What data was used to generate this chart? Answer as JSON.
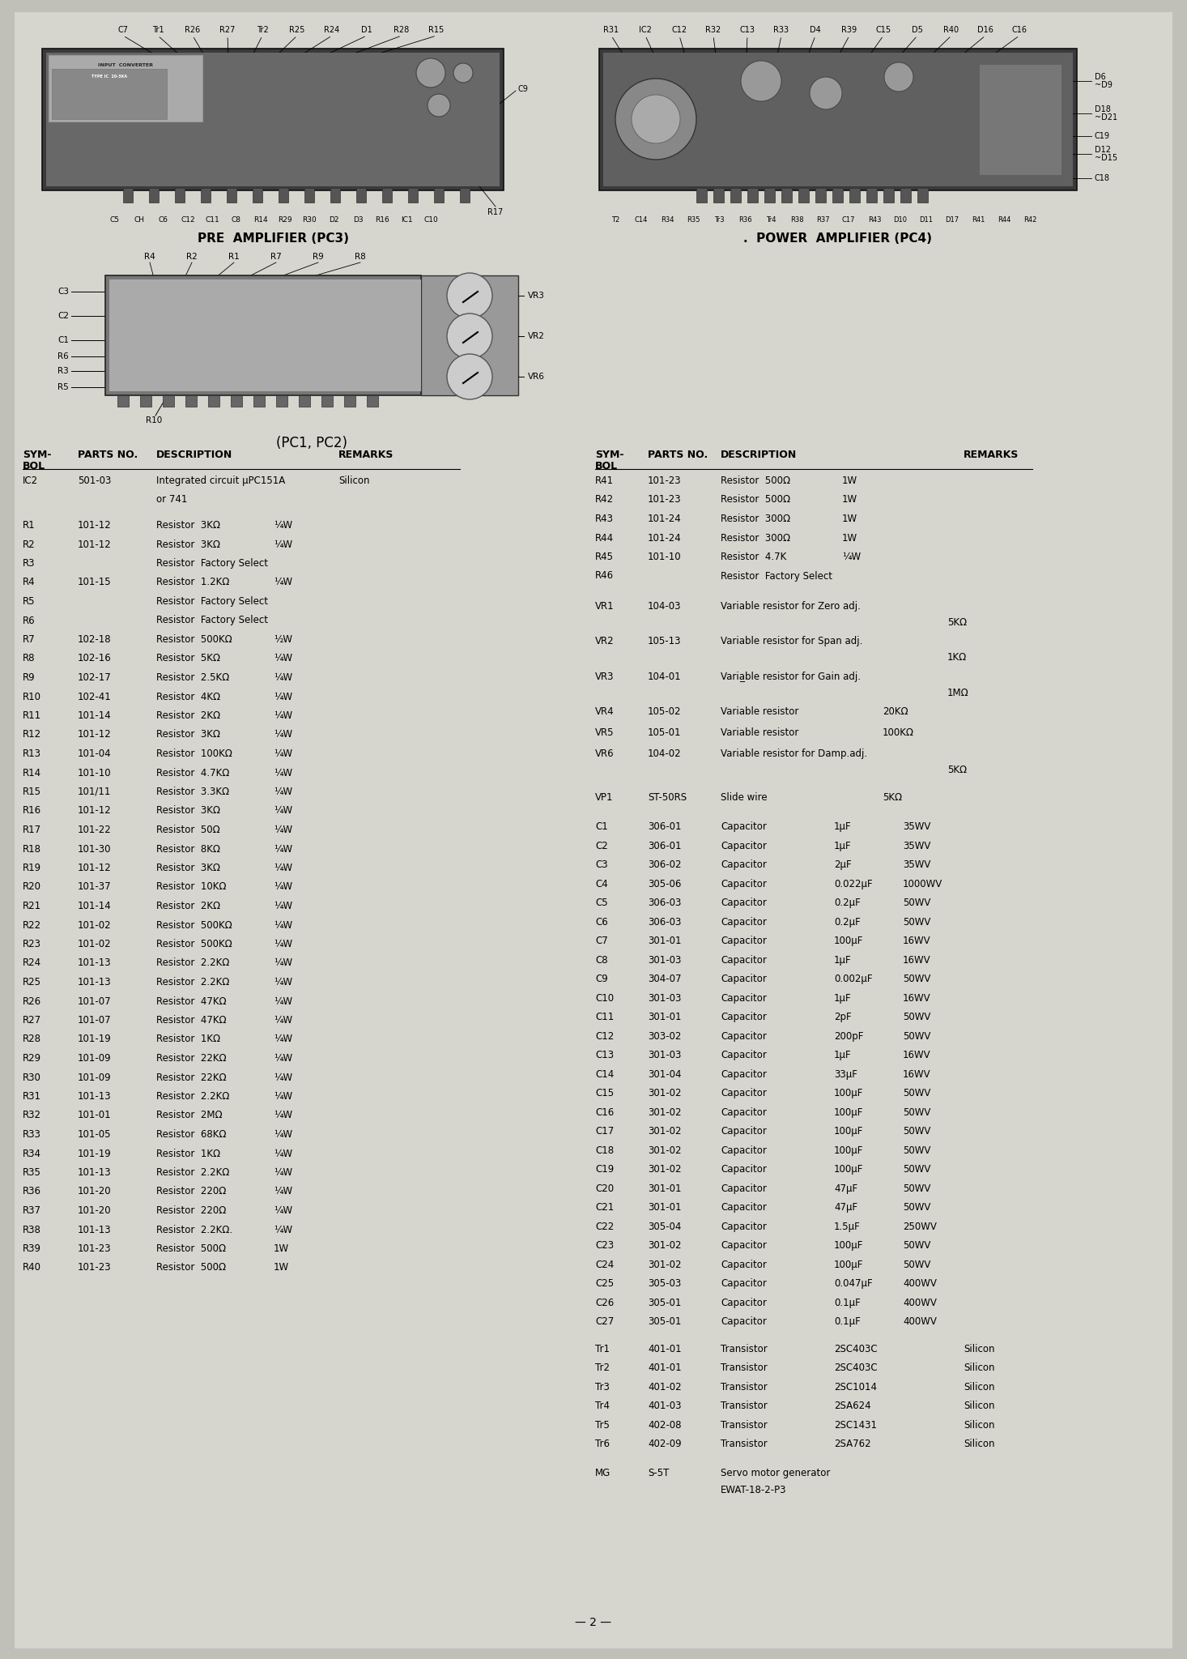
{
  "bg_color": "#c8c8c0",
  "page_bg": "#d4d4cc",
  "left_rows": [
    [
      "IC2",
      "501-03",
      "Integrated circuit μPC151A",
      "Silicon",
      "or 741"
    ],
    [
      "R1",
      "101-12",
      "Resistor  3KΩ",
      "¼W",
      ""
    ],
    [
      "R2",
      "101-12",
      "Resistor  3KΩ",
      "¼W",
      ""
    ],
    [
      "R3",
      "",
      "Resistor  Factory Select",
      "",
      ""
    ],
    [
      "R4",
      "101-15",
      "Resistor  1.2KΩ",
      "¼W",
      ""
    ],
    [
      "R5",
      "",
      "Resistor  Factory Select",
      "",
      ""
    ],
    [
      "R6",
      "",
      "Resistor  Factory Select",
      "",
      ""
    ],
    [
      "R7",
      "102-18",
      "Resistor  500KΩ",
      "½W",
      ""
    ],
    [
      "R8",
      "102-16",
      "Resistor  5KΩ",
      "¼W",
      ""
    ],
    [
      "R9",
      "102-17",
      "Resistor  2.5KΩ",
      "¼W",
      ""
    ],
    [
      "R10",
      "102-41",
      "Resistor  4KΩ",
      "¼W",
      ""
    ],
    [
      "R11",
      "101-14",
      "Resistor  2KΩ",
      "¼W",
      ""
    ],
    [
      "R12",
      "101-12",
      "Resistor  3KΩ",
      "¼W",
      ""
    ],
    [
      "R13",
      "101-04",
      "Resistor  100KΩ",
      "¼W",
      ""
    ],
    [
      "R14",
      "101-10",
      "Resistor  4.7KΩ",
      "¼W",
      ""
    ],
    [
      "R15",
      "101/11",
      "Resistor  3.3KΩ",
      "¼W",
      ""
    ],
    [
      "R16",
      "101-12",
      "Resistor  3KΩ",
      "¼W",
      ""
    ],
    [
      "R17",
      "101-22",
      "Resistor  50Ω",
      "¼W",
      ""
    ],
    [
      "R18",
      "101-30",
      "Resistor  8KΩ",
      "¼W",
      ""
    ],
    [
      "R19",
      "101-12",
      "Resistor  3KΩ",
      "¼W",
      ""
    ],
    [
      "R20",
      "101-37",
      "Resistor  10KΩ",
      "¼W",
      ""
    ],
    [
      "R21",
      "101-14",
      "Resistor  2KΩ",
      "¼W",
      ""
    ],
    [
      "R22",
      "101-02",
      "Resistor  500KΩ",
      "¼W",
      ""
    ],
    [
      "R23",
      "101-02",
      "Resistor  500KΩ",
      "¼W",
      ""
    ],
    [
      "R24",
      "101-13",
      "Resistor  2.2KΩ",
      "¼W",
      ""
    ],
    [
      "R25",
      "101-13",
      "Resistor  2.2KΩ",
      "¼W",
      ""
    ],
    [
      "R26",
      "101-07",
      "Resistor  47KΩ",
      "¼W",
      ""
    ],
    [
      "R27",
      "101-07",
      "Resistor  47KΩ",
      "¼W",
      ""
    ],
    [
      "R28",
      "101-19",
      "Resistor  1KΩ",
      "¼W",
      ""
    ],
    [
      "R29",
      "101-09",
      "Resistor  22KΩ",
      "¼W",
      ""
    ],
    [
      "R30",
      "101-09",
      "Resistor  22KΩ",
      "¼W",
      ""
    ],
    [
      "R31",
      "101-13",
      "Resistor  2.2KΩ",
      "¼W",
      ""
    ],
    [
      "R32",
      "101-01",
      "Resistor  2MΩ",
      "¼W",
      ""
    ],
    [
      "R33",
      "101-05",
      "Resistor  68KΩ",
      "¼W",
      ""
    ],
    [
      "R34",
      "101-19",
      "Resistor  1KΩ",
      "¼W",
      ""
    ],
    [
      "R35",
      "101-13",
      "Resistor  2.2KΩ",
      "¼W",
      ""
    ],
    [
      "R36",
      "101-20",
      "Resistor  220Ω",
      "¼W",
      ""
    ],
    [
      "R37",
      "101-20",
      "Resistor  220Ω",
      "¼W",
      ""
    ],
    [
      "R38",
      "101-13",
      "Resistor  2.2KΩ.",
      "¼W",
      ""
    ],
    [
      "R39",
      "101-23",
      "Resistor  500Ω",
      "1W",
      ""
    ],
    [
      "R40",
      "101-23",
      "Resistor  500Ω",
      "1W",
      ""
    ]
  ],
  "right_rows_top": [
    [
      "R41",
      "101-23",
      "Resistor  500Ω",
      "1W",
      ""
    ],
    [
      "R42",
      "101-23",
      "Resistor  500Ω",
      "1W",
      ""
    ],
    [
      "R43",
      "101-24",
      "Resistor  300Ω",
      "1W",
      ""
    ],
    [
      "R44",
      "101-24",
      "Resistor  300Ω",
      "1W",
      ""
    ],
    [
      "R45",
      "101-10",
      "Resistor  4.7K",
      "¼W",
      ""
    ],
    [
      "R46",
      "",
      "Resistor  Factory Select",
      "",
      ""
    ]
  ],
  "right_rows_vr": [
    [
      "VR1",
      "104-03",
      "Variable resistor for Zero adj.",
      "5KΩ",
      ""
    ],
    [
      "VR2",
      "105-13",
      "Variable resistor for Span adj.",
      "1KΩ",
      ""
    ],
    [
      "VR3",
      "104-01",
      "Varia̲ble resistor for Gain adj.",
      "1MΩ",
      ""
    ],
    [
      "VR4",
      "105-02",
      "Variable resistor",
      "20KΩ",
      ""
    ],
    [
      "VR5",
      "105-01",
      "Variable resistor",
      "100KΩ",
      ""
    ],
    [
      "VR6",
      "104-02",
      "Variable resistor for Damp.adj.",
      "5KΩ",
      ""
    ]
  ],
  "right_rows_vp": [
    [
      "VP1",
      "ST-50RS",
      "Slide wire",
      "5KΩ",
      ""
    ]
  ],
  "right_rows_cap": [
    [
      "C1",
      "306-01",
      "Capacitor",
      "1μF",
      "35WV"
    ],
    [
      "C2",
      "306-01",
      "Capacitor",
      "1μF",
      "35WV"
    ],
    [
      "C3",
      "306-02",
      "Capacitor",
      "2μF",
      "35WV"
    ],
    [
      "C4",
      "305-06",
      "Capacitor",
      "0.022μF",
      "1000WV"
    ],
    [
      "C5",
      "306-03",
      "Capacitor",
      "0.2μF",
      "50WV"
    ],
    [
      "C6",
      "306-03",
      "Capacitor",
      "0.2μF",
      "50WV"
    ],
    [
      "C7",
      "301-01",
      "Capacitor",
      "100μF",
      "16WV"
    ],
    [
      "C8",
      "301-03",
      "Capacitor",
      "1μF",
      "16WV"
    ],
    [
      "C9",
      "304-07",
      "Capacitor",
      "0.002μF",
      "50WV"
    ],
    [
      "C10",
      "301-03",
      "Capacitor",
      "1μF",
      "16WV"
    ],
    [
      "C11",
      "301-01",
      "Capacitor",
      "2pF",
      "50WV"
    ],
    [
      "C12",
      "303-02",
      "Capacitor",
      "200pF",
      "50WV"
    ],
    [
      "C13",
      "301-03",
      "Capacitor",
      "1μF",
      "16WV"
    ],
    [
      "C14",
      "301-04",
      "Capacitor",
      "33μF",
      "16WV"
    ],
    [
      "C15",
      "301-02",
      "Capacitor",
      "100μF",
      "50WV"
    ],
    [
      "C16",
      "301-02",
      "Capacitor",
      "100μF",
      "50WV"
    ],
    [
      "C17",
      "301-02",
      "Capacitor",
      "100μF",
      "50WV"
    ],
    [
      "C18",
      "301-02",
      "Capacitor",
      "100μF",
      "50WV"
    ],
    [
      "C19",
      "301-02",
      "Capacitor",
      "100μF",
      "50WV"
    ],
    [
      "C20",
      "301-01",
      "Capacitor",
      "47μF",
      "50WV"
    ],
    [
      "C21",
      "301-01",
      "Capacitor",
      "47μF",
      "50WV"
    ],
    [
      "C22",
      "305-04",
      "Capacitor",
      "1.5μF",
      "250WV"
    ],
    [
      "C23",
      "301-02",
      "Capacitor",
      "100μF",
      "50WV"
    ],
    [
      "C24",
      "301-02",
      "Capacitor",
      "100μF",
      "50WV"
    ],
    [
      "C25",
      "305-03",
      "Capacitor",
      "0.047μF",
      "400WV"
    ],
    [
      "C26",
      "305-01",
      "Capacitor",
      "0.1μF",
      "400WV"
    ],
    [
      "C27",
      "305-01",
      "Capacitor",
      "0.1μF",
      "400WV"
    ]
  ],
  "right_rows_tr": [
    [
      "Tr1",
      "401-01",
      "Transistor",
      "2SC403C",
      "Silicon"
    ],
    [
      "Tr2",
      "401-01",
      "Transistor",
      "2SC403C",
      "Silicon"
    ],
    [
      "Tr3",
      "401-02",
      "Transistor",
      "2SC1014",
      "Silicon"
    ],
    [
      "Tr4",
      "401-03",
      "Transistor",
      "2SA624",
      "Silicon"
    ],
    [
      "Tr5",
      "402-08",
      "Transistor",
      "2SC1431",
      "Silicon"
    ],
    [
      "Tr6",
      "402-09",
      "Transistor",
      "2SA762",
      "Silicon"
    ]
  ],
  "right_rows_mg": [
    [
      "MG",
      "S-5T",
      "Servo motor generator",
      "EWAT-18-2-P3",
      ""
    ]
  ]
}
